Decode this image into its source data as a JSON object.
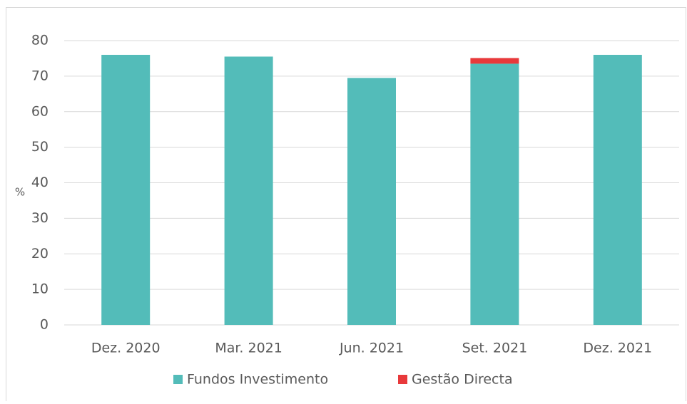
{
  "chart_data": {
    "type": "stacked_bar",
    "y_label": "%",
    "categories": [
      "Dez. 2020",
      "Mar. 2021",
      "Jun. 2021",
      "Set. 2021",
      "Dez. 2021"
    ],
    "series": [
      {
        "name": "Fundos Investimento",
        "color": "#53bcb9",
        "values": [
          76,
          75.5,
          69.5,
          73.5,
          76
        ]
      },
      {
        "name": "Gestão Directa",
        "color": "#e8393b",
        "values": [
          0,
          0,
          0,
          1.6,
          0
        ]
      }
    ],
    "ylim": [
      0,
      80
    ],
    "yticks": [
      0,
      10,
      20,
      30,
      40,
      50,
      60,
      70,
      80
    ],
    "grid": true,
    "legend": "bottom"
  }
}
